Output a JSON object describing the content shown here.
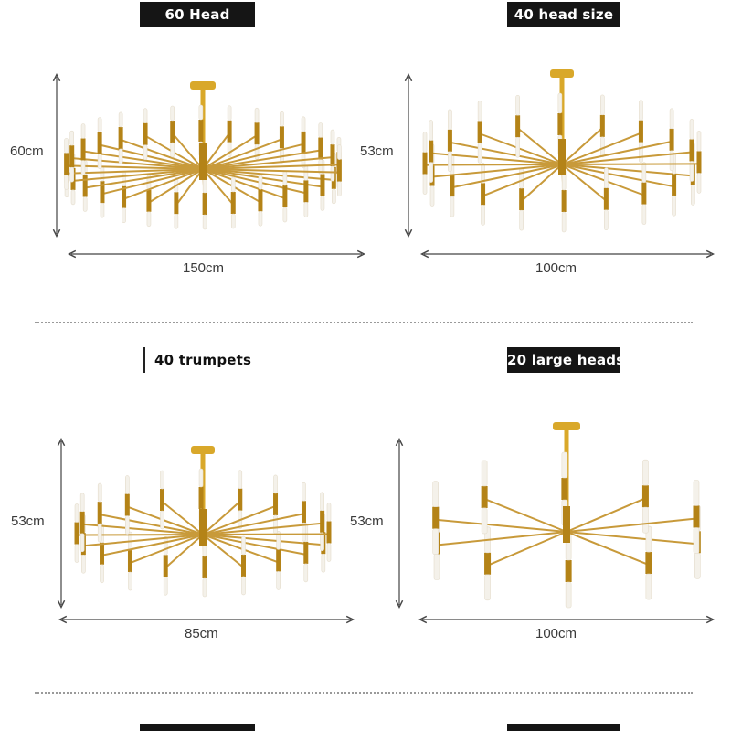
{
  "panels": [
    {
      "label": "60 Head",
      "height": "60cm",
      "width": "150cm",
      "label_style": "dark"
    },
    {
      "label": "40 head size",
      "height": "53cm",
      "width": "100cm",
      "label_style": "dark"
    },
    {
      "label": "40 trumpets",
      "height": "53cm",
      "width": "85cm",
      "label_style": "light"
    },
    {
      "label": "20 large heads",
      "height": "53cm",
      "width": "100cm",
      "label_style": "dark"
    }
  ],
  "colors": {
    "gold": "#d9a82a",
    "gold_dark": "#b48317",
    "arm": "#c89a3a",
    "bulb": "#f4f1ea",
    "guide": "#444444"
  },
  "icons": [
    "chandelier-60-head-image",
    "chandelier-40-head-image",
    "chandelier-40-trumpets-image",
    "chandelier-20-large-heads-image"
  ]
}
